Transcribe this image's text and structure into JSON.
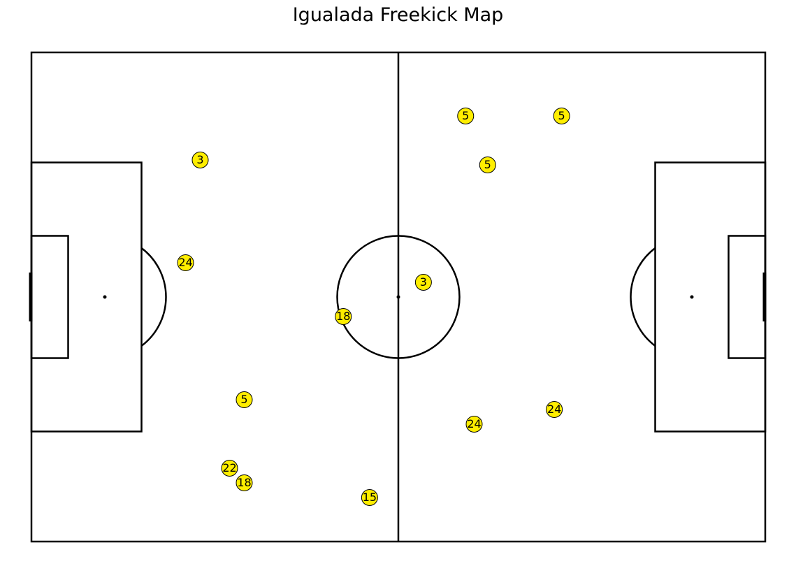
{
  "chart_data": {
    "type": "scatter",
    "title": "Igualada Freekick Map",
    "pitch": {
      "length": 120,
      "width": 80
    },
    "marker_color": "#ffee00",
    "points": [
      {
        "x": 71.0,
        "y": 69.6,
        "label": "5"
      },
      {
        "x": 86.7,
        "y": 69.6,
        "label": "5"
      },
      {
        "x": 74.6,
        "y": 61.6,
        "label": "5"
      },
      {
        "x": 27.6,
        "y": 62.4,
        "label": "3"
      },
      {
        "x": 25.2,
        "y": 45.6,
        "label": "24"
      },
      {
        "x": 64.1,
        "y": 42.4,
        "label": "3"
      },
      {
        "x": 51.0,
        "y": 36.8,
        "label": "18"
      },
      {
        "x": 34.8,
        "y": 23.2,
        "label": "5"
      },
      {
        "x": 85.5,
        "y": 21.6,
        "label": "24"
      },
      {
        "x": 72.4,
        "y": 19.2,
        "label": "24"
      },
      {
        "x": 32.4,
        "y": 12.0,
        "label": "22"
      },
      {
        "x": 34.8,
        "y": 9.6,
        "label": "18"
      },
      {
        "x": 55.3,
        "y": 7.2,
        "label": "15"
      }
    ]
  }
}
